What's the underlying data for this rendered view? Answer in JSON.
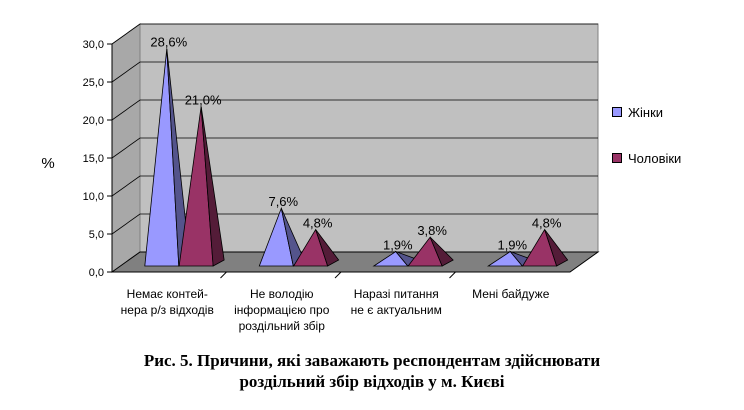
{
  "chart_data": {
    "type": "bar",
    "bar_shape": "pyramid-3d",
    "ylabel": "%",
    "ylim": [
      0,
      30
    ],
    "yticks": [
      "0,0",
      "5,0",
      "10,0",
      "15,0",
      "20,0",
      "25,0",
      "30,0"
    ],
    "grid": true,
    "legend_position": "right",
    "categories": [
      [
        "Немає контей-",
        "нера р/з відходів"
      ],
      [
        "Не володію",
        "інформацією про",
        "роздільний збір"
      ],
      [
        "Наразі питання",
        "не є актуальним"
      ],
      [
        "Мені байдуже"
      ]
    ],
    "series": [
      {
        "name": "Жінки",
        "values": [
          28.6,
          7.6,
          1.9,
          1.9
        ],
        "labels": [
          "28,6%",
          "7,6%",
          "1,9%",
          "1,9%"
        ],
        "color": "#9999ff"
      },
      {
        "name": "Чоловіки",
        "values": [
          21.0,
          4.8,
          3.8,
          4.8
        ],
        "labels": [
          "21,0%",
          "4,8%",
          "3,8%",
          "4,8%"
        ],
        "color": "#993366"
      }
    ]
  },
  "caption": {
    "line1": "Рис. 5. Причини, які заважають респондентам здійснювати",
    "line2": "роздільний збір відходів у м. Києві"
  }
}
